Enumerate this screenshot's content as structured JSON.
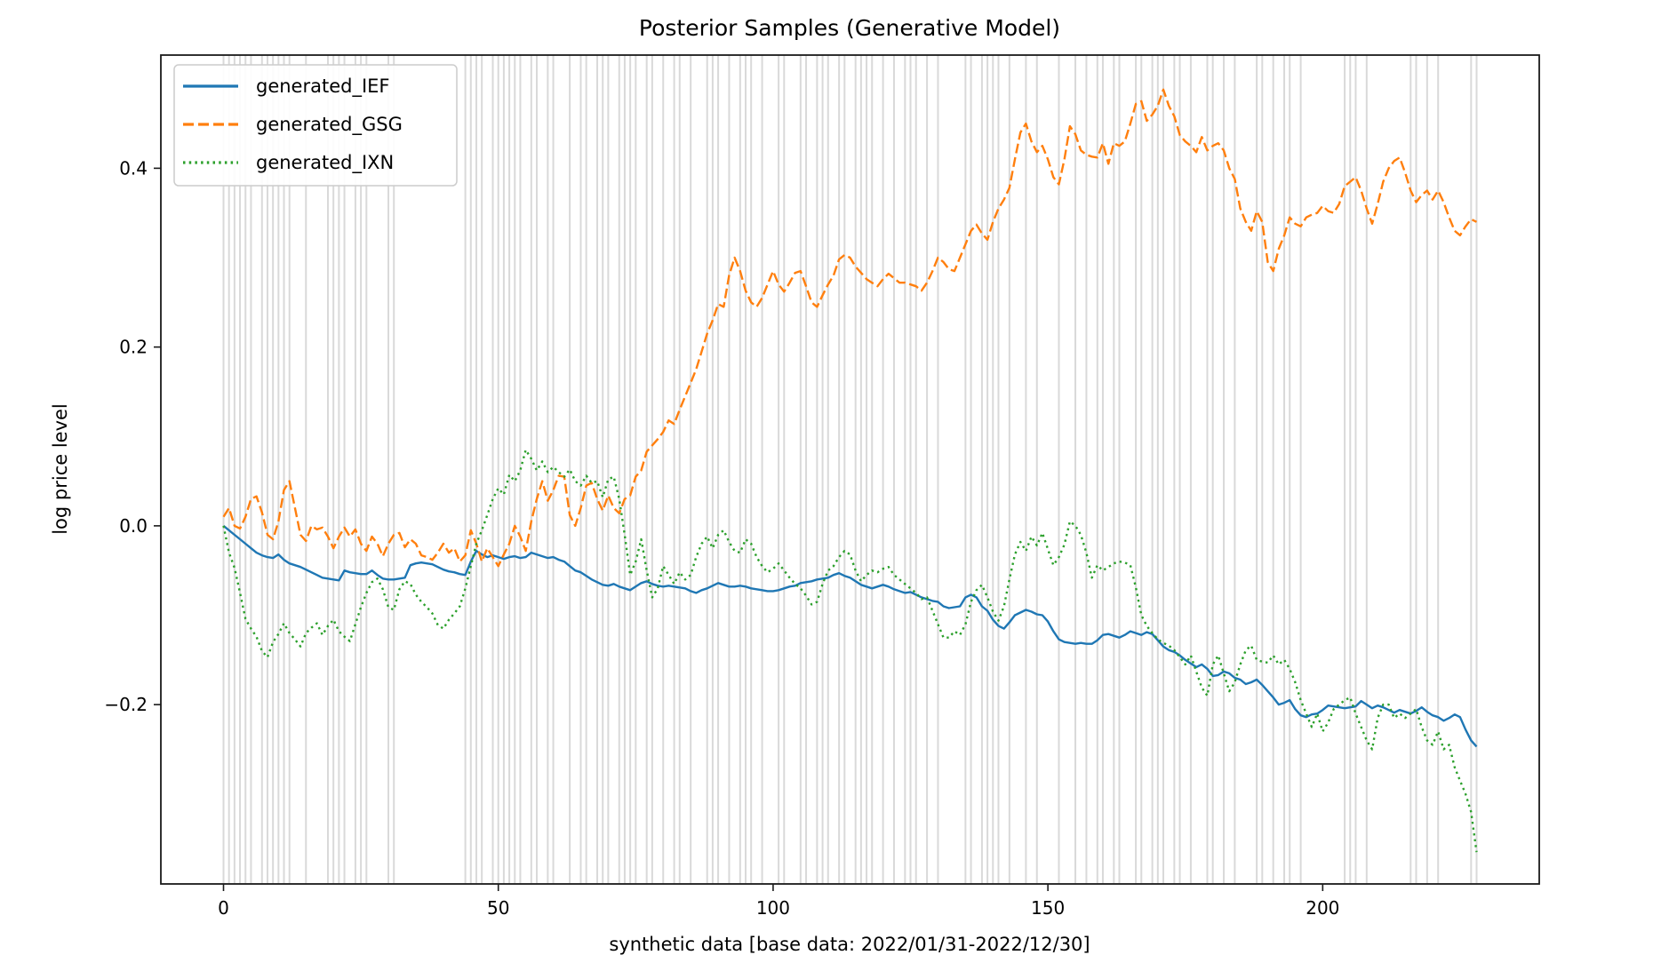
{
  "chart_data": {
    "type": "line",
    "title": "Posterior Samples (Generative Model)",
    "xlabel": "synthetic data [base data: 2022/01/31-2022/12/30]",
    "ylabel": "log price level",
    "xlim": [
      -11.4,
      239.4
    ],
    "ylim": [
      -0.4006,
      0.5266
    ],
    "xticks": [
      0,
      50,
      100,
      150,
      200
    ],
    "yticks": [
      -0.2,
      0.0,
      0.2,
      0.4
    ],
    "grid": {
      "orientation": "vertical",
      "color": "#d9d9d9",
      "positions": [
        0,
        1,
        2,
        3,
        4,
        5,
        7,
        8,
        9,
        10,
        11,
        12,
        15,
        19,
        20,
        21,
        22,
        24,
        25,
        26,
        30,
        31,
        44,
        45,
        46,
        47,
        49,
        50,
        51,
        52,
        53,
        54,
        56,
        57,
        59,
        60,
        63,
        65,
        66,
        68,
        69,
        70,
        72,
        73,
        74,
        75,
        77,
        78,
        80,
        82,
        83,
        85,
        88,
        89,
        90,
        92,
        94,
        95,
        96,
        98,
        101,
        102,
        105,
        106,
        108,
        109,
        110,
        112,
        113,
        115,
        116,
        117,
        118,
        120,
        122,
        124,
        125,
        126,
        128,
        130,
        135,
        136,
        138,
        139,
        140,
        141,
        143,
        146,
        148,
        152,
        155,
        157,
        159,
        160,
        162,
        163,
        166,
        167,
        169,
        170,
        171,
        173,
        174,
        176,
        179,
        180,
        182,
        184,
        188,
        189,
        191,
        193,
        194,
        196,
        204,
        205,
        206,
        208,
        216,
        217,
        219,
        221,
        227,
        228
      ]
    },
    "legend": {
      "position": "upper-left"
    },
    "x_start": 0,
    "x_step": 1,
    "series": [
      {
        "name": "generated_IEF",
        "color": "#1f77b4",
        "style": "solid",
        "values": [
          0.0,
          -0.005,
          -0.01,
          -0.015,
          -0.02,
          -0.025,
          -0.03,
          -0.033,
          -0.035,
          -0.036,
          -0.032,
          -0.038,
          -0.042,
          -0.044,
          -0.046,
          -0.049,
          -0.052,
          -0.055,
          -0.058,
          -0.059,
          -0.06,
          -0.061,
          -0.05,
          -0.052,
          -0.053,
          -0.054,
          -0.054,
          -0.05,
          -0.055,
          -0.059,
          -0.06,
          -0.06,
          -0.059,
          -0.058,
          -0.044,
          -0.042,
          -0.041,
          -0.042,
          -0.043,
          -0.046,
          -0.049,
          -0.051,
          -0.052,
          -0.054,
          -0.055,
          -0.04,
          -0.028,
          -0.032,
          -0.035,
          -0.033,
          -0.035,
          -0.037,
          -0.035,
          -0.034,
          -0.036,
          -0.035,
          -0.03,
          -0.032,
          -0.034,
          -0.036,
          -0.035,
          -0.038,
          -0.04,
          -0.045,
          -0.05,
          -0.052,
          -0.056,
          -0.06,
          -0.063,
          -0.066,
          -0.067,
          -0.065,
          -0.068,
          -0.07,
          -0.072,
          -0.068,
          -0.064,
          -0.062,
          -0.065,
          -0.067,
          -0.068,
          -0.067,
          -0.068,
          -0.069,
          -0.07,
          -0.073,
          -0.075,
          -0.072,
          -0.07,
          -0.067,
          -0.064,
          -0.066,
          -0.068,
          -0.068,
          -0.067,
          -0.068,
          -0.07,
          -0.071,
          -0.072,
          -0.073,
          -0.073,
          -0.072,
          -0.07,
          -0.068,
          -0.067,
          -0.064,
          -0.063,
          -0.062,
          -0.06,
          -0.059,
          -0.058,
          -0.055,
          -0.053,
          -0.056,
          -0.058,
          -0.062,
          -0.066,
          -0.068,
          -0.07,
          -0.068,
          -0.066,
          -0.068,
          -0.071,
          -0.073,
          -0.075,
          -0.074,
          -0.077,
          -0.08,
          -0.082,
          -0.084,
          -0.085,
          -0.09,
          -0.092,
          -0.091,
          -0.09,
          -0.08,
          -0.077,
          -0.08,
          -0.09,
          -0.095,
          -0.105,
          -0.112,
          -0.115,
          -0.108,
          -0.1,
          -0.097,
          -0.094,
          -0.096,
          -0.099,
          -0.1,
          -0.107,
          -0.118,
          -0.127,
          -0.13,
          -0.131,
          -0.132,
          -0.131,
          -0.132,
          -0.132,
          -0.128,
          -0.122,
          -0.121,
          -0.123,
          -0.125,
          -0.122,
          -0.118,
          -0.12,
          -0.122,
          -0.119,
          -0.121,
          -0.128,
          -0.135,
          -0.139,
          -0.141,
          -0.145,
          -0.15,
          -0.154,
          -0.158,
          -0.155,
          -0.16,
          -0.168,
          -0.167,
          -0.163,
          -0.165,
          -0.17,
          -0.172,
          -0.177,
          -0.175,
          -0.172,
          -0.178,
          -0.185,
          -0.192,
          -0.2,
          -0.198,
          -0.195,
          -0.205,
          -0.212,
          -0.214,
          -0.211,
          -0.21,
          -0.206,
          -0.201,
          -0.202,
          -0.203,
          -0.204,
          -0.203,
          -0.202,
          -0.196,
          -0.2,
          -0.204,
          -0.201,
          -0.203,
          -0.206,
          -0.209,
          -0.206,
          -0.208,
          -0.21,
          -0.207,
          -0.203,
          -0.208,
          -0.212,
          -0.214,
          -0.218,
          -0.215,
          -0.211,
          -0.214,
          -0.228,
          -0.24,
          -0.247
        ]
      },
      {
        "name": "generated_GSG",
        "color": "#ff7f0e",
        "style": "dashed",
        "values": [
          0.01,
          0.02,
          0.0,
          -0.003,
          0.01,
          0.03,
          0.033,
          0.015,
          -0.01,
          -0.015,
          0.005,
          0.04,
          0.05,
          0.02,
          -0.01,
          -0.017,
          0.0,
          -0.004,
          -0.002,
          -0.012,
          -0.025,
          -0.012,
          -0.002,
          -0.012,
          -0.004,
          -0.02,
          -0.028,
          -0.012,
          -0.02,
          -0.034,
          -0.02,
          -0.01,
          -0.008,
          -0.024,
          -0.015,
          -0.02,
          -0.033,
          -0.035,
          -0.038,
          -0.03,
          -0.02,
          -0.03,
          -0.025,
          -0.04,
          -0.033,
          -0.005,
          -0.02,
          -0.04,
          -0.025,
          -0.035,
          -0.045,
          -0.032,
          -0.02,
          0.0,
          -0.012,
          -0.028,
          0.005,
          0.03,
          0.05,
          0.028,
          0.04,
          0.056,
          0.055,
          0.012,
          0.0,
          0.02,
          0.045,
          0.048,
          0.03,
          0.017,
          0.034,
          0.02,
          0.014,
          0.03,
          0.034,
          0.055,
          0.062,
          0.083,
          0.09,
          0.097,
          0.105,
          0.118,
          0.114,
          0.13,
          0.145,
          0.16,
          0.175,
          0.195,
          0.215,
          0.23,
          0.248,
          0.245,
          0.28,
          0.3,
          0.285,
          0.263,
          0.25,
          0.245,
          0.255,
          0.27,
          0.285,
          0.27,
          0.262,
          0.272,
          0.283,
          0.285,
          0.268,
          0.25,
          0.245,
          0.258,
          0.27,
          0.28,
          0.298,
          0.303,
          0.3,
          0.29,
          0.283,
          0.276,
          0.272,
          0.268,
          0.276,
          0.282,
          0.277,
          0.272,
          0.272,
          0.27,
          0.268,
          0.263,
          0.272,
          0.285,
          0.3,
          0.295,
          0.287,
          0.285,
          0.3,
          0.315,
          0.33,
          0.337,
          0.327,
          0.32,
          0.34,
          0.355,
          0.365,
          0.378,
          0.41,
          0.44,
          0.45,
          0.43,
          0.418,
          0.425,
          0.41,
          0.39,
          0.382,
          0.41,
          0.447,
          0.438,
          0.42,
          0.415,
          0.413,
          0.412,
          0.428,
          0.405,
          0.428,
          0.425,
          0.43,
          0.45,
          0.472,
          0.475,
          0.453,
          0.46,
          0.47,
          0.488,
          0.47,
          0.458,
          0.437,
          0.43,
          0.425,
          0.418,
          0.435,
          0.42,
          0.425,
          0.428,
          0.42,
          0.4,
          0.388,
          0.355,
          0.34,
          0.33,
          0.352,
          0.34,
          0.295,
          0.285,
          0.31,
          0.325,
          0.345,
          0.338,
          0.335,
          0.345,
          0.348,
          0.35,
          0.358,
          0.352,
          0.35,
          0.36,
          0.38,
          0.385,
          0.39,
          0.375,
          0.355,
          0.338,
          0.36,
          0.385,
          0.4,
          0.408,
          0.412,
          0.395,
          0.375,
          0.362,
          0.37,
          0.375,
          0.365,
          0.375,
          0.362,
          0.345,
          0.33,
          0.325,
          0.335,
          0.343,
          0.34
        ]
      },
      {
        "name": "generated_IXN",
        "color": "#2ca02c",
        "style": "dotted",
        "values": [
          0.0,
          -0.03,
          -0.047,
          -0.075,
          -0.104,
          -0.115,
          -0.124,
          -0.14,
          -0.147,
          -0.13,
          -0.121,
          -0.109,
          -0.12,
          -0.127,
          -0.135,
          -0.12,
          -0.114,
          -0.109,
          -0.122,
          -0.112,
          -0.105,
          -0.118,
          -0.124,
          -0.129,
          -0.11,
          -0.091,
          -0.075,
          -0.063,
          -0.059,
          -0.071,
          -0.091,
          -0.094,
          -0.071,
          -0.062,
          -0.065,
          -0.077,
          -0.085,
          -0.091,
          -0.098,
          -0.111,
          -0.115,
          -0.105,
          -0.098,
          -0.09,
          -0.07,
          -0.045,
          -0.02,
          -0.005,
          0.012,
          0.03,
          0.042,
          0.035,
          0.057,
          0.05,
          0.062,
          0.085,
          0.075,
          0.062,
          0.072,
          0.06,
          0.066,
          0.06,
          0.055,
          0.063,
          0.05,
          0.045,
          0.056,
          0.048,
          0.05,
          0.032,
          0.052,
          0.055,
          0.03,
          -0.01,
          -0.055,
          -0.04,
          -0.015,
          -0.05,
          -0.08,
          -0.07,
          -0.045,
          -0.055,
          -0.065,
          -0.052,
          -0.06,
          -0.055,
          -0.035,
          -0.02,
          -0.012,
          -0.025,
          -0.01,
          -0.005,
          -0.018,
          -0.028,
          -0.03,
          -0.015,
          -0.02,
          -0.035,
          -0.045,
          -0.052,
          -0.048,
          -0.042,
          -0.05,
          -0.058,
          -0.065,
          -0.07,
          -0.078,
          -0.088,
          -0.085,
          -0.065,
          -0.05,
          -0.045,
          -0.035,
          -0.028,
          -0.032,
          -0.05,
          -0.062,
          -0.055,
          -0.05,
          -0.052,
          -0.048,
          -0.046,
          -0.055,
          -0.06,
          -0.065,
          -0.07,
          -0.075,
          -0.082,
          -0.08,
          -0.095,
          -0.11,
          -0.125,
          -0.125,
          -0.118,
          -0.122,
          -0.11,
          -0.085,
          -0.072,
          -0.066,
          -0.08,
          -0.096,
          -0.106,
          -0.09,
          -0.06,
          -0.032,
          -0.018,
          -0.028,
          -0.012,
          -0.022,
          -0.008,
          -0.026,
          -0.044,
          -0.035,
          -0.021,
          0.005,
          0.0,
          -0.01,
          -0.03,
          -0.058,
          -0.044,
          -0.05,
          -0.046,
          -0.042,
          -0.04,
          -0.041,
          -0.044,
          -0.069,
          -0.1,
          -0.112,
          -0.12,
          -0.127,
          -0.131,
          -0.134,
          -0.139,
          -0.147,
          -0.155,
          -0.145,
          -0.163,
          -0.181,
          -0.19,
          -0.155,
          -0.145,
          -0.165,
          -0.185,
          -0.175,
          -0.155,
          -0.139,
          -0.134,
          -0.15,
          -0.152,
          -0.153,
          -0.145,
          -0.155,
          -0.15,
          -0.16,
          -0.175,
          -0.195,
          -0.21,
          -0.225,
          -0.21,
          -0.23,
          -0.22,
          -0.205,
          -0.2,
          -0.195,
          -0.192,
          -0.21,
          -0.225,
          -0.24,
          -0.25,
          -0.215,
          -0.2,
          -0.2,
          -0.215,
          -0.21,
          -0.215,
          -0.21,
          -0.205,
          -0.225,
          -0.24,
          -0.245,
          -0.23,
          -0.25,
          -0.245,
          -0.27,
          -0.285,
          -0.3,
          -0.32,
          -0.365
        ]
      }
    ]
  }
}
